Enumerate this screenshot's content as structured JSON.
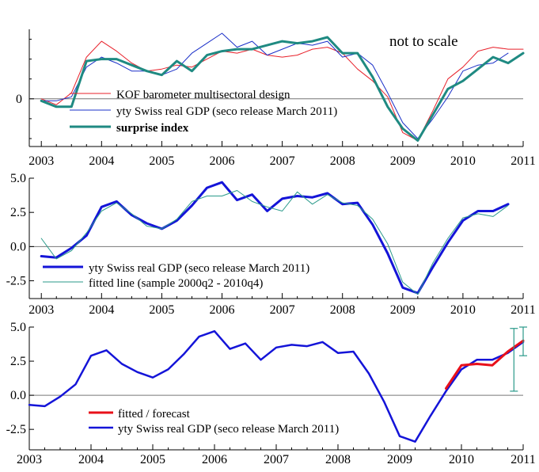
{
  "colors": {
    "kof": "#e8202a",
    "gdp_thin": "#1a2fc8",
    "surprise": "#1f8a82",
    "gdp_thick": "#1414d8",
    "fitted_line": "#2a9a8a",
    "forecast": "#e8101a",
    "interval": "#2a9a8a",
    "axis": "#000000",
    "zero_line": "#777777"
  },
  "chart_data": [
    {
      "type": "line",
      "annotation": "not to scale",
      "x_ticks": [
        "2003",
        "2004",
        "2005",
        "2006",
        "2007",
        "2008",
        "2009",
        "2010",
        "2011"
      ],
      "y_ticks": [
        "0"
      ],
      "xlim": [
        2002.8,
        2011.0
      ],
      "ylim": [
        -2.4,
        3.5
      ],
      "legend": [
        {
          "label": "KOF barometer multisectoral design",
          "series": "kof"
        },
        {
          "label": "yty Swiss real GDP (seco release March 2011)",
          "series": "gdp"
        },
        {
          "label": "surprise index",
          "series": "surprise"
        }
      ],
      "series": [
        {
          "key": "kof",
          "name": "KOF barometer multisectoral design",
          "x": [
            2003.0,
            2003.25,
            2003.5,
            2003.75,
            2004.0,
            2004.25,
            2004.5,
            2004.75,
            2005.0,
            2005.25,
            2005.5,
            2005.75,
            2006.0,
            2006.25,
            2006.5,
            2006.75,
            2007.0,
            2007.25,
            2007.5,
            2007.75,
            2008.0,
            2008.25,
            2008.5,
            2008.75,
            2009.0,
            2009.25,
            2009.5,
            2009.75,
            2010.0,
            2010.25,
            2010.5,
            2010.75,
            2011.0
          ],
          "values": [
            0.0,
            -0.3,
            0.3,
            2.1,
            2.9,
            2.4,
            1.8,
            1.4,
            1.5,
            1.7,
            1.6,
            2.0,
            2.4,
            2.3,
            2.5,
            2.2,
            2.1,
            2.2,
            2.5,
            2.6,
            2.3,
            1.5,
            0.9,
            0.1,
            -1.7,
            -2.1,
            -0.6,
            1.0,
            1.6,
            2.4,
            2.6,
            2.5,
            2.5
          ]
        },
        {
          "key": "gdp",
          "name": "yty Swiss real GDP (seco release March 2011)",
          "x": [
            2003.0,
            2003.25,
            2003.5,
            2003.75,
            2004.0,
            2004.25,
            2004.5,
            2004.75,
            2005.0,
            2005.25,
            2005.5,
            2005.75,
            2006.0,
            2006.25,
            2006.5,
            2006.75,
            2007.0,
            2007.25,
            2007.5,
            2007.75,
            2008.0,
            2008.25,
            2008.5,
            2008.75,
            2009.0,
            2009.25,
            2009.5,
            2009.75,
            2010.0,
            2010.25,
            2010.5,
            2010.75
          ],
          "values": [
            -0.1,
            -0.1,
            0.1,
            1.6,
            2.1,
            1.8,
            1.4,
            1.4,
            1.2,
            1.5,
            2.3,
            2.8,
            3.3,
            2.6,
            2.9,
            2.2,
            2.5,
            2.8,
            2.7,
            2.9,
            2.1,
            2.3,
            1.7,
            0.3,
            -1.2,
            -2.0,
            -1.0,
            0.1,
            1.4,
            1.7,
            1.8,
            2.3
          ]
        },
        {
          "key": "surprise",
          "name": "surprise index",
          "x": [
            2003.0,
            2003.25,
            2003.5,
            2003.75,
            2004.0,
            2004.25,
            2004.5,
            2004.75,
            2005.0,
            2005.25,
            2005.5,
            2005.75,
            2006.0,
            2006.25,
            2006.5,
            2006.75,
            2007.0,
            2007.25,
            2007.5,
            2007.75,
            2008.0,
            2008.25,
            2008.5,
            2008.75,
            2009.0,
            2009.25,
            2009.5,
            2009.75,
            2010.0,
            2010.25,
            2010.5,
            2010.75,
            2011.0
          ],
          "values": [
            -0.1,
            -0.4,
            -0.4,
            1.9,
            2.0,
            2.0,
            1.7,
            1.4,
            1.2,
            1.9,
            1.4,
            2.2,
            2.4,
            2.5,
            2.5,
            2.7,
            2.9,
            2.8,
            2.9,
            3.1,
            2.3,
            2.3,
            1.1,
            -0.4,
            -1.5,
            -2.1,
            -0.8,
            0.5,
            0.9,
            1.5,
            2.1,
            1.8,
            2.3
          ]
        }
      ]
    },
    {
      "type": "line",
      "x_ticks": [
        "2003",
        "2004",
        "2005",
        "2006",
        "2007",
        "2008",
        "2009",
        "2010",
        "2011"
      ],
      "y_ticks": [
        "5.0",
        "2.5",
        "0.0",
        "-2.5"
      ],
      "xlim": [
        2002.8,
        2011.0
      ],
      "ylim": [
        -3.8,
        5.0
      ],
      "legend": [
        {
          "label": "yty Swiss real GDP (seco release March 2011)",
          "series": "gdp"
        },
        {
          "label": "fitted line (sample 2000q2 - 2010q4)",
          "series": "fitted"
        }
      ],
      "series": [
        {
          "key": "gdp",
          "name": "yty Swiss real GDP (seco release March 2011)",
          "x": [
            2003.0,
            2003.25,
            2003.5,
            2003.75,
            2004.0,
            2004.25,
            2004.5,
            2004.75,
            2005.0,
            2005.25,
            2005.5,
            2005.75,
            2006.0,
            2006.25,
            2006.5,
            2006.75,
            2007.0,
            2007.25,
            2007.5,
            2007.75,
            2008.0,
            2008.25,
            2008.5,
            2008.75,
            2009.0,
            2009.25,
            2009.5,
            2009.75,
            2010.0,
            2010.25,
            2010.5,
            2010.75
          ],
          "values": [
            -0.7,
            -0.8,
            -0.1,
            0.8,
            2.9,
            3.3,
            2.3,
            1.7,
            1.3,
            1.9,
            3.0,
            4.3,
            4.7,
            3.4,
            3.8,
            2.6,
            3.5,
            3.7,
            3.6,
            3.9,
            3.1,
            3.2,
            1.6,
            -0.5,
            -3.0,
            -3.4,
            -1.5,
            0.3,
            1.9,
            2.6,
            2.6,
            3.1
          ]
        },
        {
          "key": "fitted",
          "name": "fitted line (sample 2000q2 - 2010q4)",
          "x": [
            2003.0,
            2003.25,
            2003.5,
            2003.75,
            2004.0,
            2004.25,
            2004.5,
            2004.75,
            2005.0,
            2005.25,
            2005.5,
            2005.75,
            2006.0,
            2006.25,
            2006.5,
            2006.75,
            2007.0,
            2007.25,
            2007.5,
            2007.75,
            2008.0,
            2008.25,
            2008.5,
            2008.75,
            2009.0,
            2009.25,
            2009.5,
            2009.75,
            2010.0,
            2010.25,
            2010.5,
            2010.75
          ],
          "values": [
            0.6,
            -0.9,
            -0.3,
            1.0,
            2.6,
            3.2,
            2.4,
            1.5,
            1.3,
            2.0,
            3.3,
            3.7,
            3.7,
            4.1,
            3.3,
            2.9,
            2.6,
            4.0,
            3.1,
            3.8,
            3.2,
            3.0,
            2.0,
            0.2,
            -2.6,
            -3.5,
            -1.2,
            0.6,
            2.1,
            2.4,
            2.2,
            3.0
          ]
        }
      ]
    },
    {
      "type": "line",
      "x_ticks": [
        "2003",
        "2004",
        "2005",
        "2006",
        "2007",
        "2008",
        "2009",
        "2010",
        "2011"
      ],
      "y_ticks": [
        "5.0",
        "2.5",
        "0.0",
        "-2.5"
      ],
      "xlim": [
        2003.0,
        2011.0
      ],
      "ylim": [
        -4.0,
        5.0
      ],
      "legend": [
        {
          "label": "fitted / forecast",
          "series": "forecast"
        },
        {
          "label": "yty Swiss real GDP (seco release March 2011)",
          "series": "gdp"
        }
      ],
      "series": [
        {
          "key": "gdp",
          "name": "yty Swiss real GDP (seco release March 2011)",
          "x": [
            2003.0,
            2003.25,
            2003.5,
            2003.75,
            2004.0,
            2004.25,
            2004.5,
            2004.75,
            2005.0,
            2005.25,
            2005.5,
            2005.75,
            2006.0,
            2006.25,
            2006.5,
            2006.75,
            2007.0,
            2007.25,
            2007.5,
            2007.75,
            2008.0,
            2008.25,
            2008.5,
            2008.75,
            2009.0,
            2009.25,
            2009.5,
            2009.75,
            2010.0,
            2010.25,
            2010.5,
            2010.75,
            2011.0
          ],
          "values": [
            -0.7,
            -0.8,
            -0.1,
            0.8,
            2.9,
            3.3,
            2.3,
            1.7,
            1.3,
            1.9,
            3.0,
            4.3,
            4.7,
            3.4,
            3.8,
            2.6,
            3.5,
            3.7,
            3.6,
            3.9,
            3.1,
            3.2,
            1.6,
            -0.5,
            -3.0,
            -3.4,
            -1.5,
            0.3,
            1.9,
            2.6,
            2.6,
            3.1,
            3.9
          ]
        },
        {
          "key": "forecast",
          "name": "fitted / forecast",
          "x": [
            2009.75,
            2010.0,
            2010.25,
            2010.5,
            2010.75,
            2011.0
          ],
          "values": [
            0.5,
            2.2,
            2.3,
            2.2,
            3.2,
            4.0
          ]
        }
      ],
      "intervals": [
        {
          "x": 2010.85,
          "low": 0.3,
          "high": 4.9
        },
        {
          "x": 2011.0,
          "low": 2.9,
          "high": 5.0
        }
      ]
    }
  ]
}
